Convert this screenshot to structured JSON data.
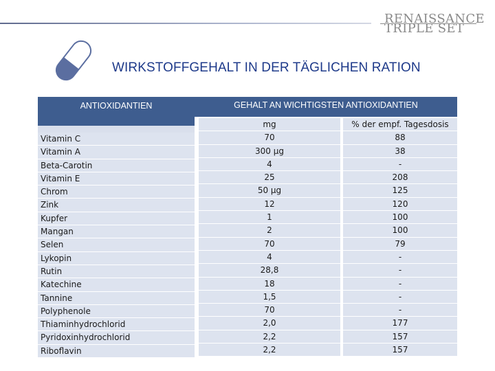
{
  "brand": {
    "line1": "RENAISSANCE",
    "line2": "TRIPLE SET"
  },
  "title": "WIRKSTOFFGEHALT IN DER TÄGLICHEN RATION",
  "table": {
    "header_left": "ANTIOXIDANTIEN",
    "header_right": "GEHALT AN WICHTIGSTEN ANTIOXIDANTIEN",
    "col_mg": "mg",
    "col_pct": "% der empf. Tagesdosis",
    "rows": [
      {
        "name": "Vitamin C",
        "mg": "70",
        "pct": "88"
      },
      {
        "name": "Vitamin A",
        "mg": "300 µg",
        "pct": "38"
      },
      {
        "name": "Beta-Carotin",
        "mg": "4",
        "pct": "-"
      },
      {
        "name": "Vitamin E",
        "mg": "25",
        "pct": "208"
      },
      {
        "name": "Chrom",
        "mg": "50 µg",
        "pct": "125"
      },
      {
        "name": "Zink",
        "mg": "12",
        "pct": "120"
      },
      {
        "name": "Kupfer",
        "mg": "1",
        "pct": "100"
      },
      {
        "name": "Mangan",
        "mg": "2",
        "pct": "100"
      },
      {
        "name": "Selen",
        "mg": "70",
        "pct": "79"
      },
      {
        "name": "Lykopin",
        "mg": "4",
        "pct": "-"
      },
      {
        "name": "Rutin",
        "mg": "28,8",
        "pct": "-"
      },
      {
        "name": "Katechine",
        "mg": "18",
        "pct": "-"
      },
      {
        "name": "Tannine",
        "mg": "1,5",
        "pct": "-"
      },
      {
        "name": "Polyphenole",
        "mg": "70",
        "pct": "-"
      },
      {
        "name": "Thiaminhydrochlorid",
        "mg": "2,0",
        "pct": "177"
      },
      {
        "name": "Pyridoxinhydrochlorid",
        "mg": "2,2",
        "pct": "157"
      },
      {
        "name": "Riboflavin",
        "mg": "2,2",
        "pct": "157"
      }
    ]
  },
  "colors": {
    "header_bg": "#3e5d8f",
    "row_bg": "#dde3ef",
    "title": "#1e3a8a",
    "pill": "#5b6ea0"
  }
}
